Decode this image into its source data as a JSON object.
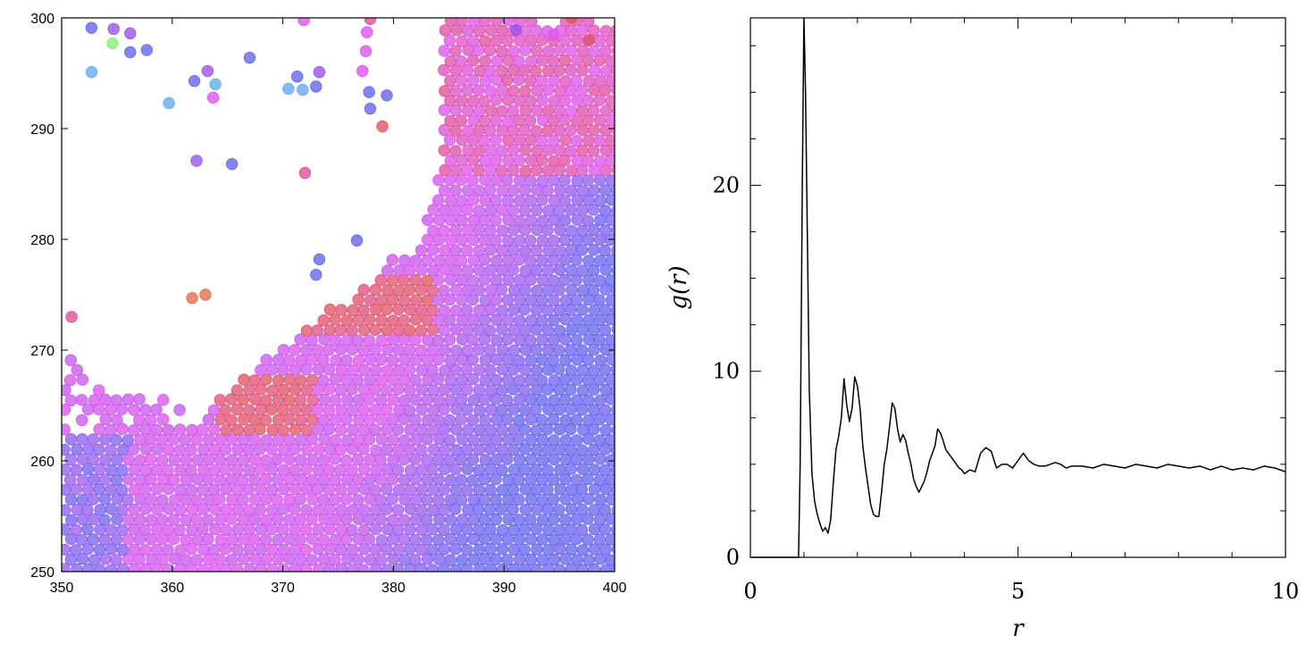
{
  "chart_data": [
    {
      "type": "scatter",
      "title": "",
      "xlabel": "",
      "ylabel": "",
      "xlim": [
        350,
        400
      ],
      "ylim": [
        250,
        300
      ],
      "x_ticks": [
        "350",
        "360",
        "370",
        "380",
        "390",
        "400"
      ],
      "y_ticks": [
        "250",
        "260",
        "270",
        "280",
        "290",
        "300"
      ],
      "grid": false,
      "legend": "none",
      "colors": {
        "magenta": "#dd55ee",
        "pink": "#e0509a",
        "red": "#e05560",
        "blue": "#6666ee",
        "violet": "#9955ee",
        "light_blue": "#66aaf0",
        "green": "#88ee77",
        "orange": "#e07050"
      },
      "isolated_particles": [
        {
          "x": 352.7,
          "y": 299.1,
          "c": "blue"
        },
        {
          "x": 354.7,
          "y": 299.0,
          "c": "violet"
        },
        {
          "x": 356.2,
          "y": 298.6,
          "c": "violet"
        },
        {
          "x": 354.6,
          "y": 297.7,
          "c": "green"
        },
        {
          "x": 356.2,
          "y": 296.9,
          "c": "blue"
        },
        {
          "x": 357.7,
          "y": 297.1,
          "c": "blue"
        },
        {
          "x": 352.7,
          "y": 295.1,
          "c": "light_blue"
        },
        {
          "x": 359.7,
          "y": 292.3,
          "c": "light_blue"
        },
        {
          "x": 362.0,
          "y": 294.3,
          "c": "blue"
        },
        {
          "x": 363.2,
          "y": 295.2,
          "c": "violet"
        },
        {
          "x": 363.9,
          "y": 294.0,
          "c": "light_blue"
        },
        {
          "x": 363.7,
          "y": 292.8,
          "c": "magenta"
        },
        {
          "x": 367.0,
          "y": 296.4,
          "c": "blue"
        },
        {
          "x": 362.2,
          "y": 287.1,
          "c": "violet"
        },
        {
          "x": 365.4,
          "y": 286.8,
          "c": "blue"
        },
        {
          "x": 370.5,
          "y": 293.6,
          "c": "light_blue"
        },
        {
          "x": 371.3,
          "y": 294.7,
          "c": "blue"
        },
        {
          "x": 371.8,
          "y": 293.5,
          "c": "light_blue"
        },
        {
          "x": 373.0,
          "y": 293.8,
          "c": "blue"
        },
        {
          "x": 373.3,
          "y": 295.1,
          "c": "violet"
        },
        {
          "x": 372.0,
          "y": 286.0,
          "c": "pink"
        },
        {
          "x": 371.9,
          "y": 299.8,
          "c": "magenta"
        },
        {
          "x": 377.6,
          "y": 298.7,
          "c": "magenta"
        },
        {
          "x": 377.5,
          "y": 297.0,
          "c": "magenta"
        },
        {
          "x": 377.2,
          "y": 295.2,
          "c": "magenta"
        },
        {
          "x": 377.8,
          "y": 293.3,
          "c": "blue"
        },
        {
          "x": 377.9,
          "y": 291.8,
          "c": "blue"
        },
        {
          "x": 379.4,
          "y": 293.0,
          "c": "blue"
        },
        {
          "x": 379.0,
          "y": 290.2,
          "c": "red"
        },
        {
          "x": 377.9,
          "y": 299.9,
          "c": "pink"
        },
        {
          "x": 373.3,
          "y": 278.2,
          "c": "blue"
        },
        {
          "x": 373.0,
          "y": 276.8,
          "c": "blue"
        },
        {
          "x": 376.7,
          "y": 279.9,
          "c": "blue"
        },
        {
          "x": 361.8,
          "y": 274.7,
          "c": "orange"
        },
        {
          "x": 363.0,
          "y": 275.0,
          "c": "orange"
        },
        {
          "x": 350.9,
          "y": 273.0,
          "c": "pink"
        },
        {
          "x": 397.7,
          "y": 298.0,
          "c": "red"
        },
        {
          "x": 396.1,
          "y": 300.0,
          "c": "red"
        },
        {
          "x": 394.5,
          "y": 298.5,
          "c": "magenta"
        },
        {
          "x": 391.1,
          "y": 298.9,
          "c": "violet"
        }
      ]
    },
    {
      "type": "line",
      "title": "",
      "xlabel": "r",
      "ylabel": "g(r)",
      "xlim": [
        0,
        10
      ],
      "ylim": [
        0,
        29
      ],
      "x_ticks": [
        "0",
        "5",
        "10"
      ],
      "y_ticks": [
        "0",
        "10",
        "20"
      ],
      "grid": false,
      "legend": "none",
      "series": [
        {
          "x": [
            0.0,
            0.9,
            0.93,
            0.97,
            1.0,
            1.03,
            1.07,
            1.1,
            1.15,
            1.2,
            1.25,
            1.3,
            1.35,
            1.4,
            1.45,
            1.5,
            1.55,
            1.6,
            1.65,
            1.7,
            1.75,
            1.8,
            1.85,
            1.9,
            1.95,
            2.0,
            2.05,
            2.1,
            2.15,
            2.2,
            2.25,
            2.3,
            2.35,
            2.4,
            2.45,
            2.5,
            2.55,
            2.6,
            2.65,
            2.7,
            2.75,
            2.8,
            2.85,
            2.9,
            2.95,
            3.0,
            3.05,
            3.1,
            3.15,
            3.2,
            3.25,
            3.3,
            3.35,
            3.4,
            3.45,
            3.5,
            3.55,
            3.6,
            3.65,
            3.7,
            3.75,
            3.8,
            3.85,
            3.9,
            3.95,
            4.0,
            4.1,
            4.2,
            4.3,
            4.4,
            4.5,
            4.6,
            4.7,
            4.8,
            4.9,
            5.0,
            5.1,
            5.2,
            5.3,
            5.4,
            5.5,
            5.6,
            5.7,
            5.8,
            5.9,
            6.0,
            6.2,
            6.4,
            6.6,
            6.8,
            7.0,
            7.2,
            7.4,
            7.6,
            7.8,
            8.0,
            8.2,
            8.4,
            8.6,
            8.8,
            9.0,
            9.2,
            9.4,
            9.6,
            9.8,
            10.0
          ],
          "y": [
            0.0,
            0.0,
            5.0,
            20.0,
            29.0,
            25.0,
            16.0,
            9.0,
            4.5,
            3.0,
            2.3,
            1.8,
            1.4,
            1.6,
            1.3,
            2.0,
            4.0,
            5.8,
            6.5,
            7.5,
            9.6,
            8.2,
            7.3,
            8.0,
            9.7,
            9.2,
            8.0,
            6.0,
            4.8,
            3.8,
            2.8,
            2.3,
            2.2,
            2.2,
            3.5,
            5.0,
            5.8,
            7.0,
            8.3,
            8.0,
            6.9,
            6.2,
            6.6,
            6.3,
            5.6,
            5.0,
            4.2,
            3.8,
            3.5,
            3.8,
            4.1,
            4.6,
            5.2,
            5.6,
            6.0,
            6.9,
            6.7,
            6.3,
            5.8,
            5.6,
            5.4,
            5.2,
            5.0,
            4.8,
            4.7,
            4.5,
            4.7,
            4.6,
            5.6,
            5.9,
            5.7,
            4.8,
            5.0,
            5.0,
            4.8,
            5.2,
            5.6,
            5.2,
            5.0,
            4.9,
            4.9,
            5.0,
            5.1,
            5.0,
            4.8,
            4.9,
            4.9,
            4.8,
            5.0,
            4.9,
            4.8,
            5.0,
            4.9,
            4.8,
            5.0,
            4.9,
            4.8,
            4.9,
            4.7,
            4.9,
            4.7,
            4.8,
            4.7,
            4.9,
            4.8,
            4.6
          ]
        }
      ]
    }
  ]
}
